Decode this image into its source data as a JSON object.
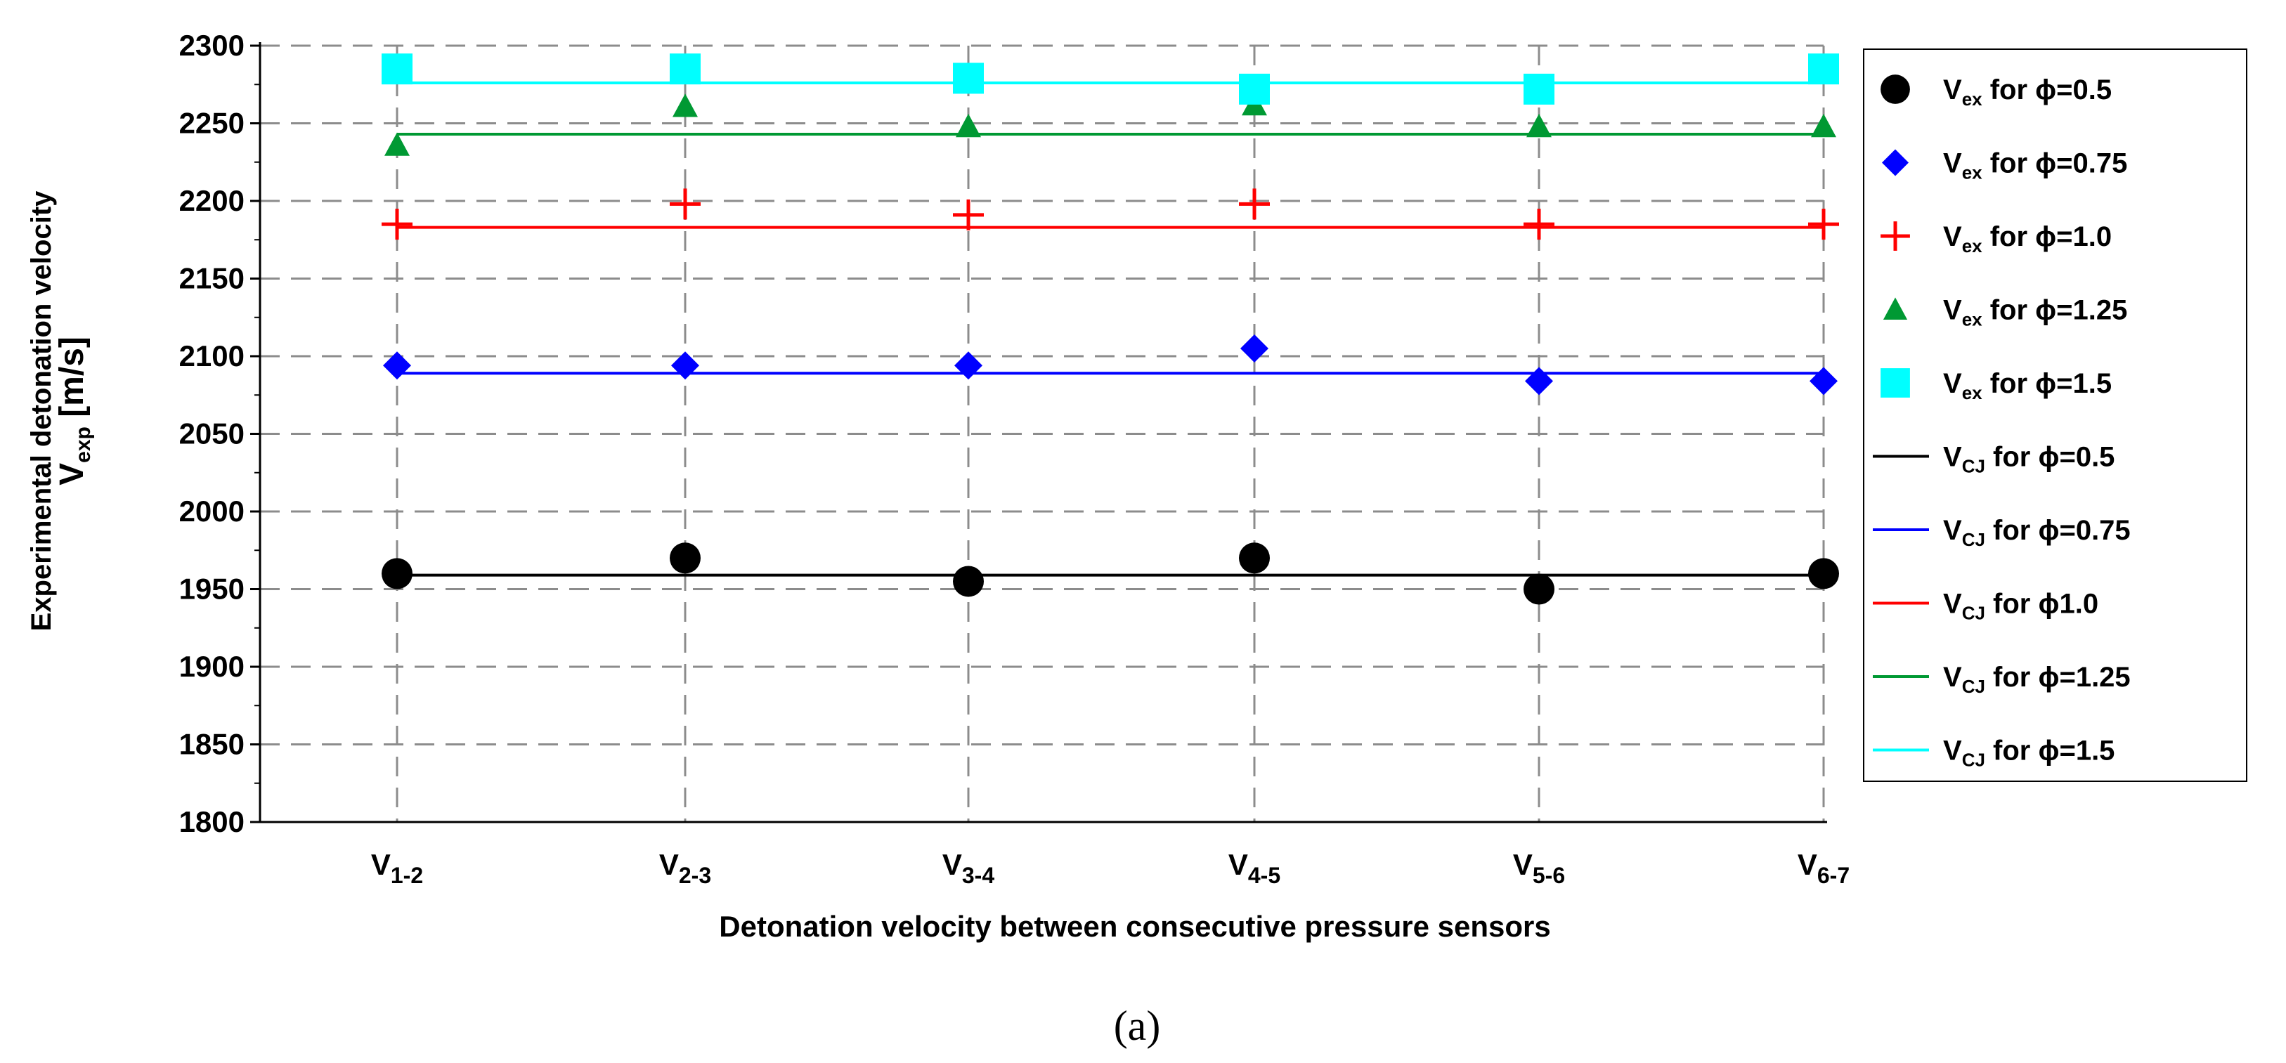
{
  "chart_data": {
    "type": "scatter",
    "caption": "(a)",
    "xlabel": "Detonation velocity between consecutive pressure sensors",
    "ylabel_line1": "Experimental detonation velocity",
    "ylabel_main": "V",
    "ylabel_sub": "exp",
    "ylabel_unit": " [m/s]",
    "ylim": [
      1800,
      2300
    ],
    "yticks": [
      1800,
      1850,
      1900,
      1950,
      2000,
      2050,
      2100,
      2150,
      2200,
      2250,
      2300
    ],
    "grid": true,
    "legend_position": "right",
    "categories": [
      {
        "main": "V",
        "sub": "1-2"
      },
      {
        "main": "V",
        "sub": "2-3"
      },
      {
        "main": "V",
        "sub": "3-4"
      },
      {
        "main": "V",
        "sub": "4-5"
      },
      {
        "main": "V",
        "sub": "5-6"
      },
      {
        "main": "V",
        "sub": "6-7"
      }
    ],
    "series": [
      {
        "name": "V_ex for ϕ=0.5",
        "legend_main": "V",
        "legend_sub": "ex",
        "legend_text": " for ϕ=0.5",
        "marker": "circle",
        "color": "#000000",
        "values": [
          1960,
          1970,
          1955,
          1970,
          1950,
          1960
        ]
      },
      {
        "name": "V_ex for ϕ=0.75",
        "legend_main": "V",
        "legend_sub": "ex",
        "legend_text": " for ϕ=0.75",
        "marker": "diamond",
        "color": "#0000ff",
        "values": [
          2094,
          2094,
          2094,
          2105,
          2084,
          2084
        ]
      },
      {
        "name": "V_ex for ϕ=1.0",
        "legend_main": "V",
        "legend_sub": "ex",
        "legend_text": " for ϕ=1.0",
        "marker": "plus",
        "color": "#ff0000",
        "values": [
          2185,
          2198,
          2191,
          2198,
          2185,
          2185
        ]
      },
      {
        "name": "V_ex for ϕ=1.25",
        "legend_main": "V",
        "legend_sub": "ex",
        "legend_text": " for ϕ=1.25",
        "marker": "triangle",
        "color": "#009933",
        "values": [
          2236,
          2261,
          2248,
          2262,
          2248,
          2248
        ]
      },
      {
        "name": "V_ex for ϕ=1.5",
        "legend_main": "V",
        "legend_sub": "ex",
        "legend_text": " for ϕ=1.5",
        "marker": "square",
        "color": "#00ffff",
        "values": [
          2285,
          2285,
          2279,
          2272,
          2272,
          2285
        ]
      }
    ],
    "reference_lines": [
      {
        "name": "V_CJ for ϕ=0.5",
        "legend_main": "V",
        "legend_sub": "CJ",
        "legend_text": " for ϕ=0.5",
        "color": "#000000",
        "value": 1959
      },
      {
        "name": "V_CJ for ϕ=0.75",
        "legend_main": "V",
        "legend_sub": "CJ",
        "legend_text": " for ϕ=0.75",
        "color": "#0000ff",
        "value": 2089
      },
      {
        "name": "V_CJ for ϕ1.0",
        "legend_main": "V",
        "legend_sub": "CJ",
        "legend_text": " for ϕ1.0",
        "color": "#ff0000",
        "value": 2183
      },
      {
        "name": "V_CJ for ϕ=1.25",
        "legend_main": "V",
        "legend_sub": "CJ",
        "legend_text": " for ϕ=1.25",
        "color": "#009933",
        "value": 2243
      },
      {
        "name": "V_CJ for ϕ=1.5",
        "legend_main": "V",
        "legend_sub": "CJ",
        "legend_text": " for ϕ=1.5",
        "color": "#00ffff",
        "value": 2276
      }
    ]
  }
}
